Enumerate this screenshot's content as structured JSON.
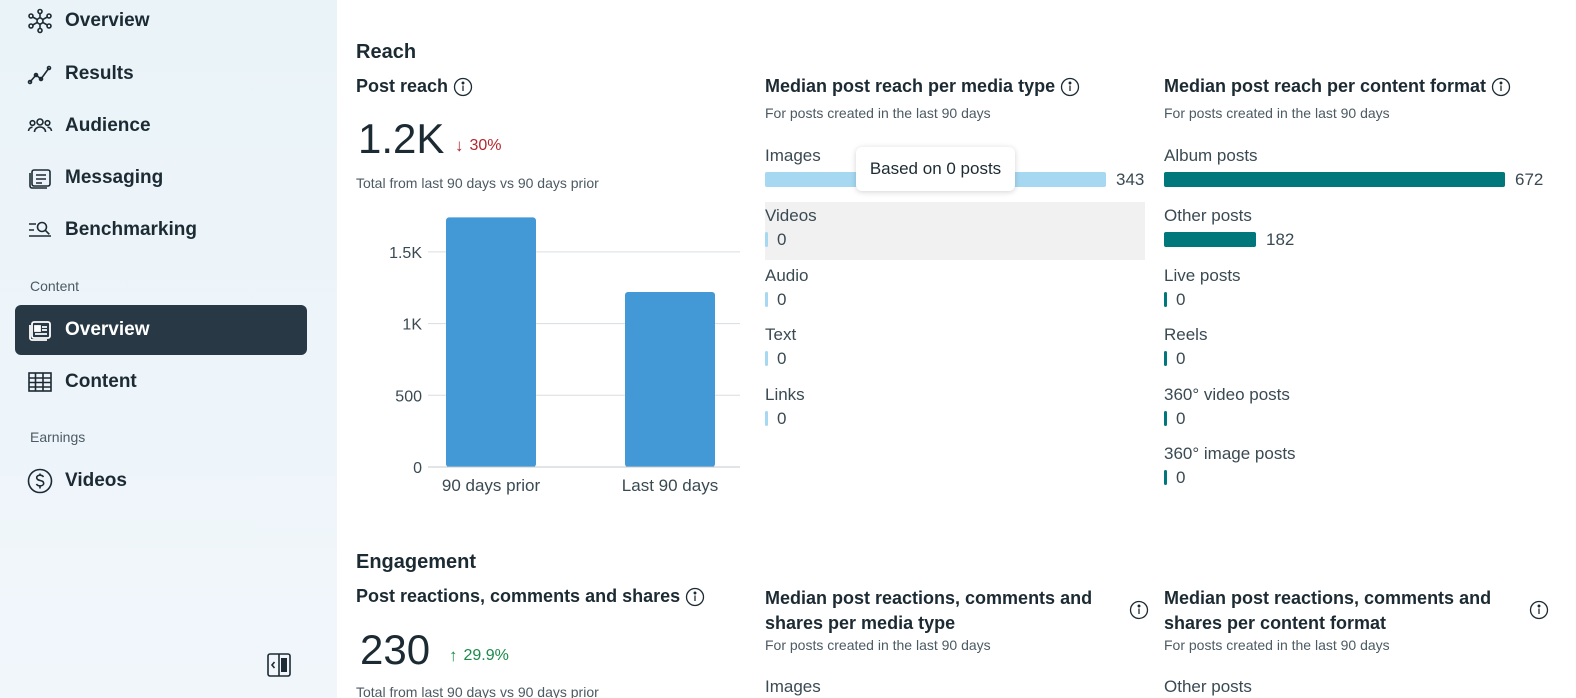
{
  "sidebar": {
    "items": [
      {
        "label": "Overview",
        "icon": "network-icon"
      },
      {
        "label": "Results",
        "icon": "trend-line-icon"
      },
      {
        "label": "Audience",
        "icon": "people-icon"
      },
      {
        "label": "Messaging",
        "icon": "messaging-icon"
      },
      {
        "label": "Benchmarking",
        "icon": "benchmark-icon"
      }
    ],
    "content_section_label": "Content",
    "content_items": [
      {
        "label": "Overview",
        "icon": "content-overview-icon",
        "active": true
      },
      {
        "label": "Content",
        "icon": "table-grid-icon"
      }
    ],
    "earnings_section_label": "Earnings",
    "earnings_items": [
      {
        "label": "Videos",
        "icon": "dollar-circle-icon"
      }
    ]
  },
  "reach": {
    "section_title": "Reach",
    "post_reach": {
      "title": "Post reach",
      "value": "1.2K",
      "delta": "30%",
      "delta_direction": "down",
      "caption": "Total from last 90 days vs 90 days prior"
    },
    "media_type": {
      "title": "Median post reach per media type",
      "subtitle": "For posts created in the last 90 days",
      "rows": [
        {
          "label": "Images",
          "value": "343"
        },
        {
          "label": "Videos",
          "value": "0"
        },
        {
          "label": "Audio",
          "value": "0"
        },
        {
          "label": "Text",
          "value": "0"
        },
        {
          "label": "Links",
          "value": "0"
        }
      ],
      "tooltip": "Based on 0 posts",
      "bar_color": "#a6d8f2"
    },
    "content_format": {
      "title": "Median post reach per content format",
      "subtitle": "For posts created in the last 90 days",
      "rows": [
        {
          "label": "Album posts",
          "value": "672"
        },
        {
          "label": "Other posts",
          "value": "182"
        },
        {
          "label": "Live posts",
          "value": "0"
        },
        {
          "label": "Reels",
          "value": "0"
        },
        {
          "label": "360° video posts",
          "value": "0"
        },
        {
          "label": "360° image posts",
          "value": "0"
        }
      ],
      "bar_color": "#00777a"
    }
  },
  "engagement": {
    "section_title": "Engagement",
    "post_rcs": {
      "title": "Post reactions, comments and shares",
      "value": "230",
      "delta": "29.9%",
      "delta_direction": "up",
      "caption": "Total from last 90 days vs 90 days prior"
    },
    "media_type": {
      "title_line1": "Median post reactions, comments and",
      "title_line2": "shares per media type",
      "subtitle": "For posts created in the last 90 days",
      "first_row": "Images"
    },
    "content_format": {
      "title_line1": "Median post reactions, comments and",
      "title_line2": "shares per content format",
      "subtitle": "For posts created in the last 90 days",
      "first_row": "Other posts"
    }
  },
  "chart_data": {
    "type": "bar",
    "categories": [
      "90 days prior",
      "Last 90 days"
    ],
    "values": [
      1740,
      1220
    ],
    "yticks": [
      "0",
      "500",
      "1K",
      "1.5K"
    ],
    "ylim": [
      0,
      1750
    ],
    "color": "#4299d6"
  }
}
